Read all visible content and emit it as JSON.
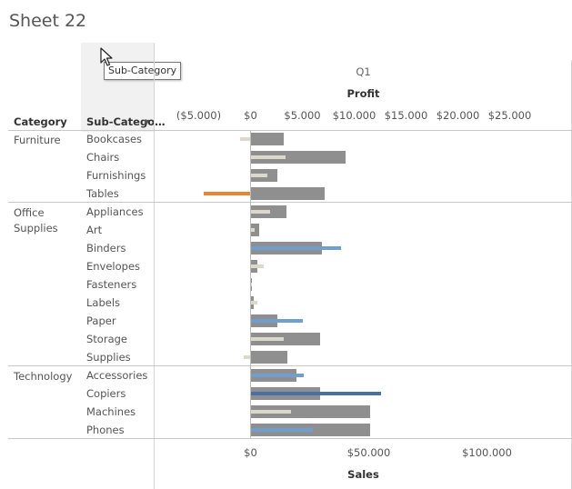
{
  "sheet_title": "Sheet 22",
  "tooltip_text": "Sub-Category",
  "headers": {
    "category": "Category",
    "sub_category": "Sub-Catego…"
  },
  "quarter_label": "Q1",
  "profit_axis_title": "Profit",
  "sales_axis_title": "Sales",
  "colors": {
    "sales_bar": "#8f8f8f",
    "profit_neutral": "#dcd8cc",
    "profit_negative": "#e8872f",
    "profit_light_blue": "#6f9fd0",
    "profit_dark_blue": "#4a6fa5"
  },
  "chart_data": {
    "type": "bar",
    "profit_ticks": [
      {
        "value": -5000,
        "label": "($5.000)"
      },
      {
        "value": 0,
        "label": "$0"
      },
      {
        "value": 5000,
        "label": "$5.000"
      },
      {
        "value": 10000,
        "label": "$10.000"
      },
      {
        "value": 15000,
        "label": "$15.000"
      },
      {
        "value": 20000,
        "label": "$20.000"
      },
      {
        "value": 25000,
        "label": "$25.000"
      }
    ],
    "sales_ticks": [
      {
        "value": 0,
        "label": "$0"
      },
      {
        "value": 50000,
        "label": "$50.000"
      },
      {
        "value": 100000,
        "label": "$100.000"
      }
    ],
    "categories": [
      {
        "name": "Furniture",
        "rows": [
          {
            "sub": "Bookcases",
            "sales": 14000,
            "profit": -1000,
            "profit_color": "neutral"
          },
          {
            "sub": "Chairs",
            "sales": 40000,
            "profit": 3400,
            "profit_color": "neutral"
          },
          {
            "sub": "Furnishings",
            "sales": 11500,
            "profit": 1600,
            "profit_color": "neutral"
          },
          {
            "sub": "Tables",
            "sales": 31500,
            "profit": -4500,
            "profit_color": "negative"
          }
        ]
      },
      {
        "name": "Office Supplies",
        "rows": [
          {
            "sub": "Appliances",
            "sales": 15000,
            "profit": 1900,
            "profit_color": "neutral"
          },
          {
            "sub": "Art",
            "sales": 3500,
            "profit": 400,
            "profit_color": "neutral"
          },
          {
            "sub": "Binders",
            "sales": 30000,
            "profit": 8700,
            "profit_color": "light_blue"
          },
          {
            "sub": "Envelopes",
            "sales": 3000,
            "profit": 1300,
            "profit_color": "neutral"
          },
          {
            "sub": "Fasteners",
            "sales": 500,
            "profit": 100,
            "profit_color": "neutral"
          },
          {
            "sub": "Labels",
            "sales": 1500,
            "profit": 700,
            "profit_color": "neutral"
          },
          {
            "sub": "Paper",
            "sales": 11500,
            "profit": 5000,
            "profit_color": "light_blue"
          },
          {
            "sub": "Storage",
            "sales": 29500,
            "profit": 3200,
            "profit_color": "neutral"
          },
          {
            "sub": "Supplies",
            "sales": 15500,
            "profit": -700,
            "profit_color": "neutral"
          }
        ]
      },
      {
        "name": "Technology",
        "rows": [
          {
            "sub": "Accessories",
            "sales": 19500,
            "profit": 5100,
            "profit_color": "light_blue"
          },
          {
            "sub": "Copiers",
            "sales": 29500,
            "profit": 12600,
            "profit_color": "dark_blue"
          },
          {
            "sub": "Machines",
            "sales": 50500,
            "profit": 3900,
            "profit_color": "neutral"
          },
          {
            "sub": "Phones",
            "sales": 50500,
            "profit": 6000,
            "profit_color": "light_blue"
          }
        ]
      }
    ]
  }
}
